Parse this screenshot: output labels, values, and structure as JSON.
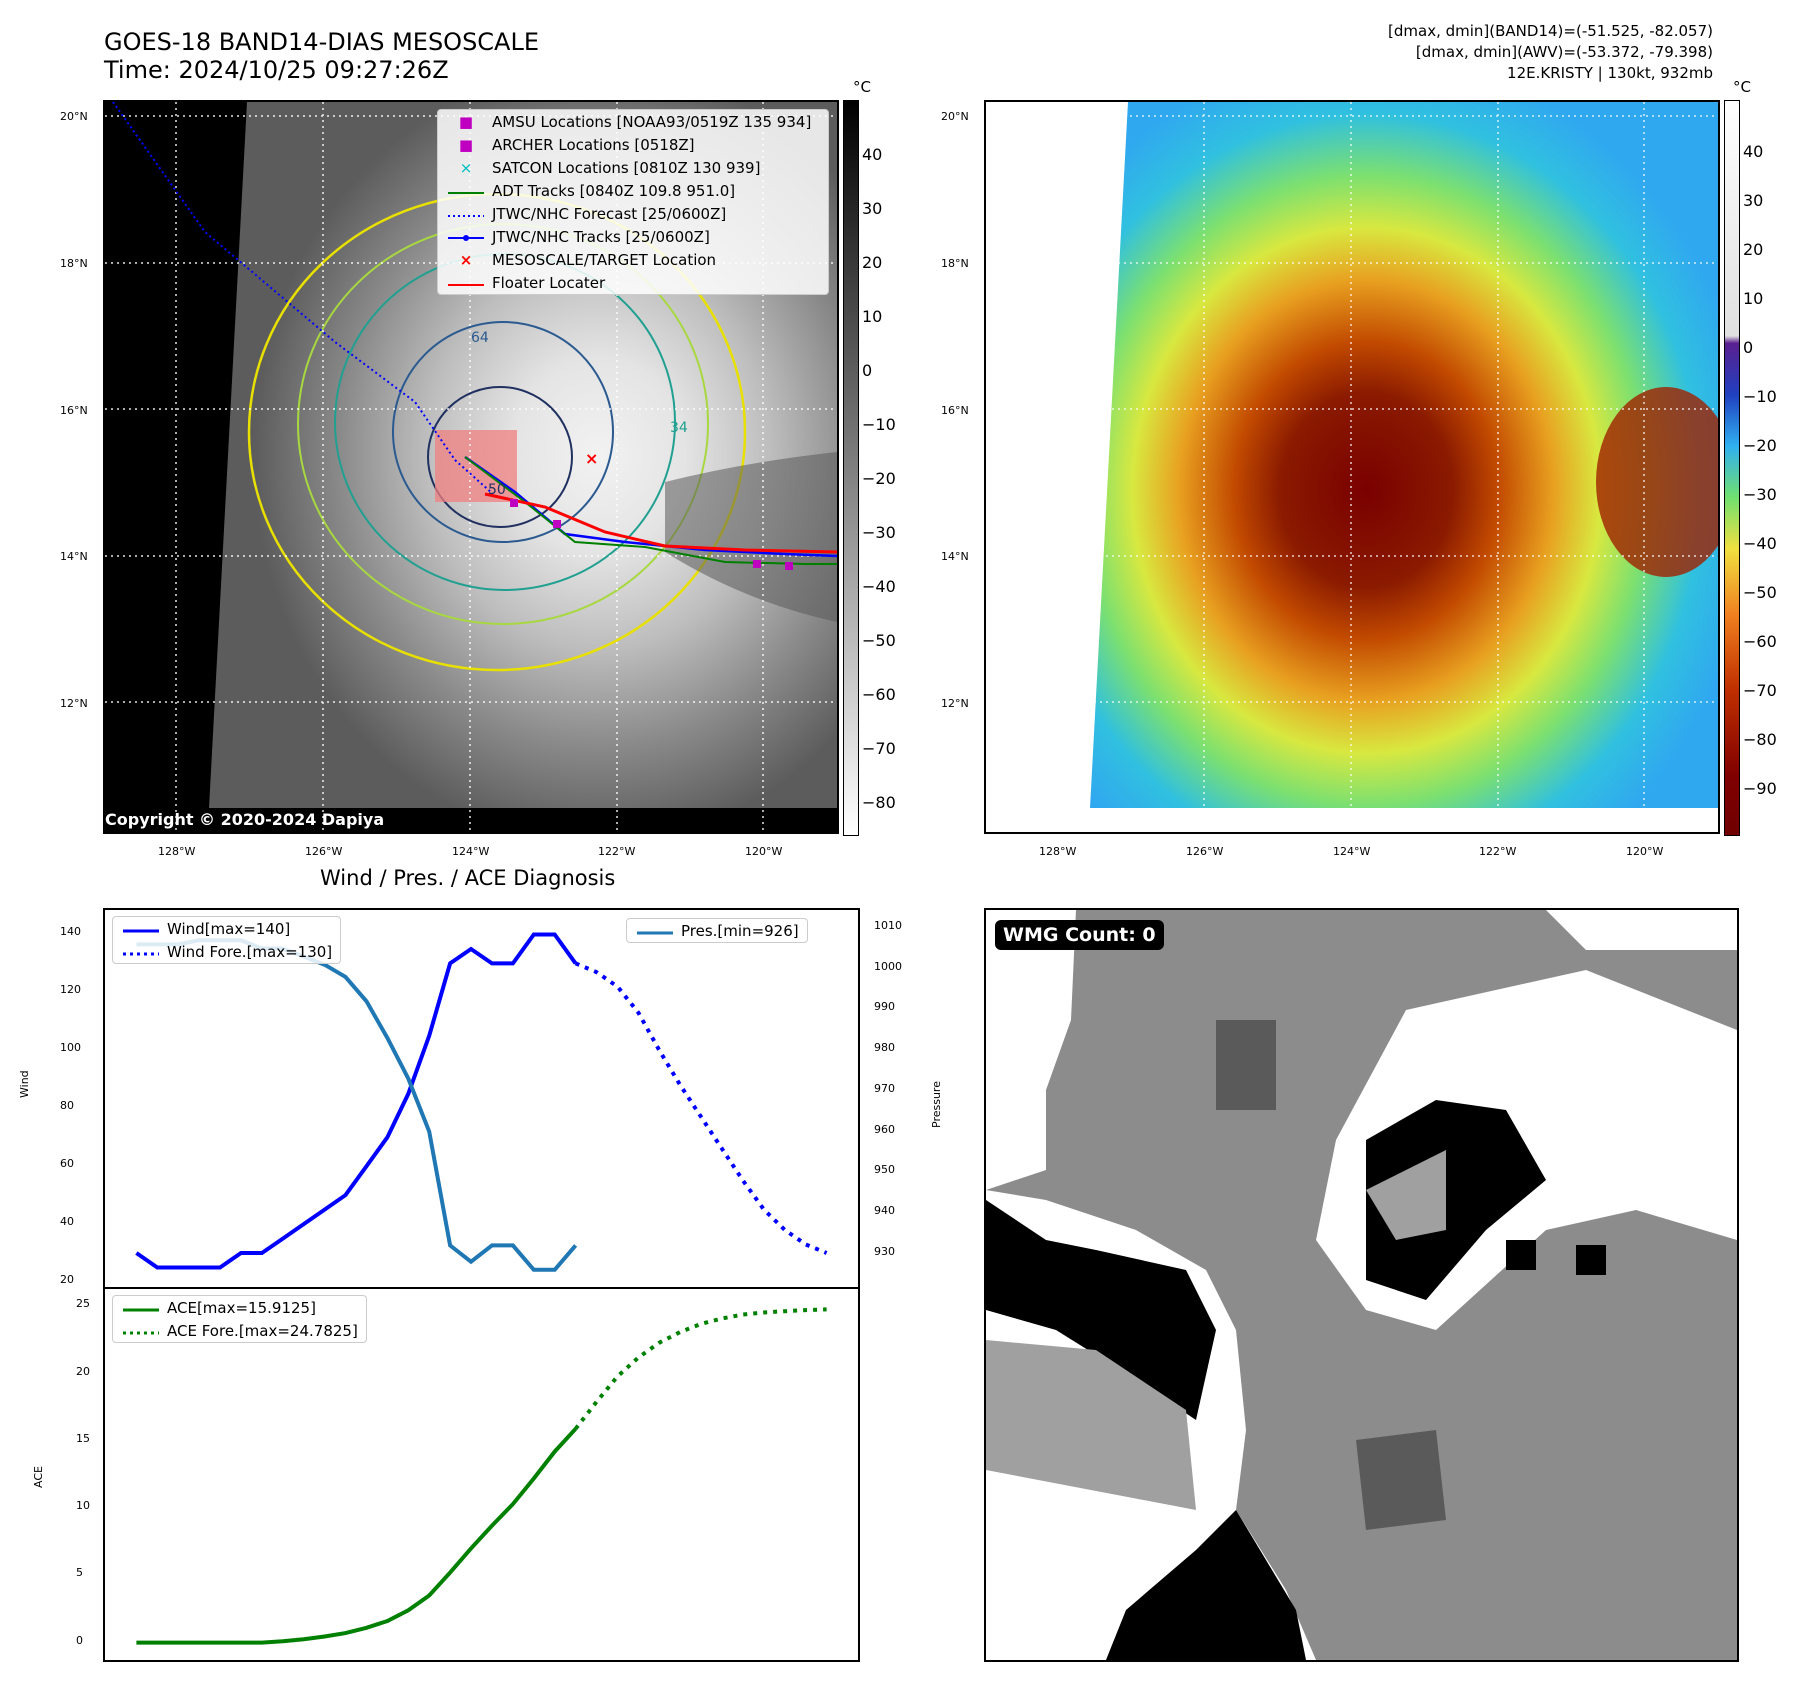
{
  "header": {
    "title_line1": "GOES-18 BAND14-DIAS MESOSCALE",
    "title_line2": "Time: 2024/10/25 09:27:26Z",
    "right_line1": "[dmax, dmin](BAND14)=(-51.525, -82.057)",
    "right_line2": "[dmax, dmin](AWV)=(-53.372, -79.398)",
    "right_line3": "12E.KRISTY | 130kt, 932mb"
  },
  "map": {
    "lat_labels": [
      "20°N",
      "18°N",
      "16°N",
      "14°N",
      "12°N"
    ],
    "lon_labels": [
      "128°W",
      "126°W",
      "124°W",
      "122°W",
      "120°W"
    ],
    "copyright": "Copyright © 2020-2024 Dapiya",
    "contour_labels": [
      "64",
      "34",
      "50"
    ],
    "legend": [
      {
        "label": "AMSU Locations [NOAA93/0519Z 135 934]",
        "color": "#c000c0",
        "symbol": "square"
      },
      {
        "label": "ARCHER Locations [0518Z]",
        "color": "#c000c0",
        "symbol": "square"
      },
      {
        "label": "SATCON Locations [0810Z 130 939]",
        "color": "#00c0c0",
        "symbol": "x"
      },
      {
        "label": "ADT Tracks [0840Z 109.8 951.0]",
        "color": "#008000",
        "symbol": "line"
      },
      {
        "label": "JTWC/NHC Forecast [25/0600Z]",
        "color": "#0000ff",
        "symbol": "dotted"
      },
      {
        "label": "JTWC/NHC Tracks [25/0600Z]",
        "color": "#0000ff",
        "symbol": "line-dot"
      },
      {
        "label": "MESOSCALE/TARGET Location",
        "color": "#ff0000",
        "symbol": "x"
      },
      {
        "label": "Floater Locater",
        "color": "#ff0000",
        "symbol": "line"
      }
    ]
  },
  "colorbar_gray": {
    "unit": "°C",
    "ticks": [
      "40",
      "30",
      "20",
      "10",
      "0",
      "−10",
      "−20",
      "−30",
      "−40",
      "−50",
      "−60",
      "−70",
      "−80"
    ]
  },
  "colorbar_color": {
    "unit": "°C",
    "ticks": [
      "40",
      "30",
      "20",
      "10",
      "0",
      "−10",
      "−20",
      "−30",
      "−40",
      "−50",
      "−60",
      "−70",
      "−80",
      "−90"
    ]
  },
  "diagnosis": {
    "title": "Wind / Pres. / ACE Diagnosis",
    "wind_ylabel": "Wind",
    "pres_ylabel": "Pressure",
    "ace_ylabel": "ACE",
    "legend_wind": "Wind[max=140]",
    "legend_wind_fore": "Wind Fore.[max=130]",
    "legend_pres": "Pres.[min=926]",
    "legend_ace": "ACE[max=15.9125]",
    "legend_ace_fore": "ACE Fore.[max=24.7825]"
  },
  "wmg": {
    "label": "WMG Count: 0"
  },
  "chart_data": [
    {
      "type": "line",
      "title": "Wind / Pres. / ACE Diagnosis",
      "ylabel": "Wind",
      "ylim": [
        20,
        145
      ],
      "yticks": [
        "20",
        "40",
        "60",
        "80",
        "100",
        "120",
        "140"
      ],
      "series": [
        {
          "name": "Wind[max=140]",
          "color": "#0000ff",
          "style": "solid",
          "x": [
            0,
            1,
            2,
            3,
            4,
            5,
            6,
            7,
            8,
            9,
            10,
            11,
            12,
            13,
            14,
            15,
            16,
            17,
            18,
            19,
            20,
            21
          ],
          "values": [
            30,
            25,
            25,
            25,
            25,
            30,
            30,
            35,
            40,
            45,
            50,
            60,
            70,
            85,
            105,
            130,
            135,
            130,
            130,
            140,
            140,
            130
          ]
        },
        {
          "name": "Wind Fore.[max=130]",
          "color": "#0000ff",
          "style": "dotted",
          "x": [
            21,
            22,
            23,
            24,
            25,
            26,
            27,
            28,
            29,
            30,
            31,
            32,
            33
          ],
          "values": [
            130,
            127,
            122,
            113,
            100,
            88,
            77,
            66,
            55,
            45,
            38,
            33,
            30
          ]
        }
      ]
    },
    {
      "type": "line",
      "ylabel": "Pressure",
      "ylim": [
        923,
        1012
      ],
      "yticks": [
        "930",
        "940",
        "950",
        "960",
        "970",
        "980",
        "990",
        "1000",
        "1010"
      ],
      "series": [
        {
          "name": "Pres.[min=926]",
          "color": "#1f77b4",
          "style": "solid",
          "x": [
            0,
            1,
            2,
            3,
            4,
            5,
            6,
            7,
            8,
            9,
            10,
            11,
            12,
            13,
            14,
            15,
            16,
            17,
            18,
            19,
            20,
            21
          ],
          "values": [
            1006,
            1006,
            1006,
            1007,
            1007,
            1007,
            1005,
            1005,
            1003,
            1001,
            998,
            992,
            983,
            973,
            960,
            932,
            928,
            932,
            932,
            926,
            926,
            932
          ]
        }
      ]
    },
    {
      "type": "line",
      "ylabel": "ACE",
      "ylim": [
        -1,
        26
      ],
      "yticks": [
        "0",
        "5",
        "10",
        "15",
        "20",
        "25"
      ],
      "series": [
        {
          "name": "ACE[max=15.9125]",
          "color": "#008000",
          "style": "solid",
          "x": [
            0,
            1,
            2,
            3,
            4,
            5,
            6,
            7,
            8,
            9,
            10,
            11,
            12,
            13,
            14,
            15,
            16,
            17,
            18,
            19,
            20,
            21
          ],
          "values": [
            0,
            0,
            0,
            0,
            0,
            0,
            0,
            0.1,
            0.25,
            0.45,
            0.7,
            1.1,
            1.6,
            2.4,
            3.5,
            5.2,
            7.0,
            8.7,
            10.3,
            12.2,
            14.2,
            15.9
          ]
        },
        {
          "name": "ACE Fore.[max=24.7825]",
          "color": "#008000",
          "style": "dotted",
          "x": [
            21,
            22,
            23,
            24,
            25,
            26,
            27,
            28,
            29,
            30,
            31,
            32,
            33
          ],
          "values": [
            15.9,
            17.9,
            19.8,
            21.2,
            22.3,
            23.1,
            23.7,
            24.1,
            24.4,
            24.55,
            24.65,
            24.73,
            24.78
          ]
        }
      ]
    }
  ]
}
